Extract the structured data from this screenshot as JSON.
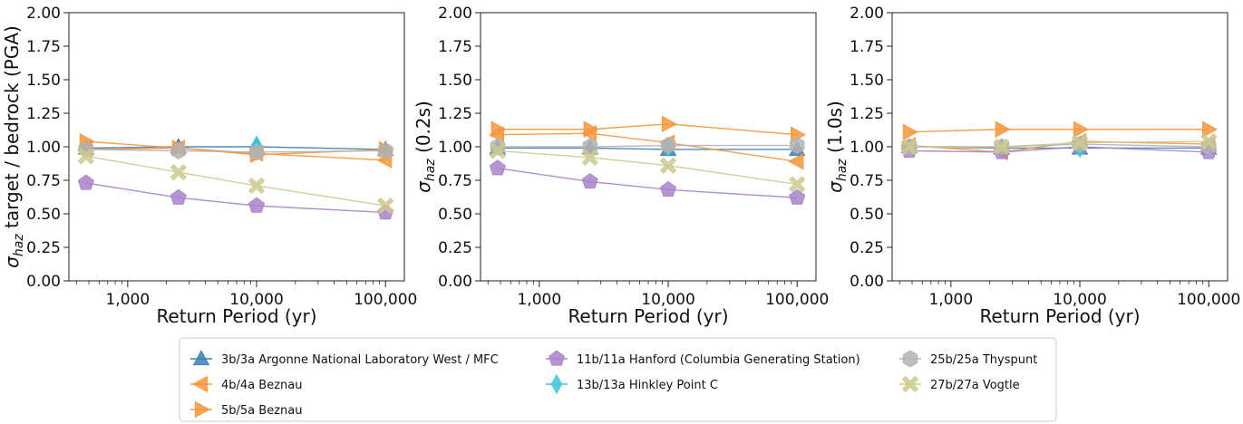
{
  "chart_data": [
    {
      "type": "line",
      "xlabel": "Return Period (yr)",
      "ylabel_parts": {
        "sigma": "σ",
        "sub": "haz",
        "rest": " target / bedrock (PGA)"
      },
      "xscale": "log",
      "xlim": [
        350,
        140000
      ],
      "ylim": [
        0,
        2.0
      ],
      "x": [
        475,
        2475,
        10000,
        100000
      ],
      "xticks": [
        {
          "value": 1000,
          "label": "1,000"
        },
        {
          "value": 10000,
          "label": "10,000"
        },
        {
          "value": 100000,
          "label": "100,000"
        }
      ],
      "yticks": [
        "0.00",
        "0.25",
        "0.50",
        "0.75",
        "1.00",
        "1.25",
        "1.50",
        "1.75",
        "2.00"
      ],
      "series": [
        {
          "key": "s3",
          "values": [
            0.99,
            1.0,
            1.0,
            0.98
          ]
        },
        {
          "key": "s4",
          "values": [
            0.98,
            0.99,
            0.95,
            0.9
          ]
        },
        {
          "key": "s5",
          "values": [
            1.04,
            0.99,
            0.94,
            0.98
          ]
        },
        {
          "key": "s11",
          "values": [
            0.73,
            0.62,
            0.56,
            0.51
          ]
        },
        {
          "key": "s13",
          "values": [
            null,
            null,
            1.01,
            null
          ]
        },
        {
          "key": "s25",
          "values": [
            0.98,
            0.97,
            0.96,
            0.97
          ]
        },
        {
          "key": "s27",
          "values": [
            0.93,
            0.81,
            0.71,
            0.56
          ]
        }
      ]
    },
    {
      "type": "line",
      "xlabel": "Return Period (yr)",
      "ylabel_parts": {
        "sigma": "σ",
        "sub": "haz",
        "rest": " (0.2s)"
      },
      "xscale": "log",
      "xlim": [
        350,
        140000
      ],
      "ylim": [
        0,
        2.0
      ],
      "x": [
        475,
        2475,
        10000,
        100000
      ],
      "xticks": [
        {
          "value": 1000,
          "label": "1,000"
        },
        {
          "value": 10000,
          "label": "10,000"
        },
        {
          "value": 100000,
          "label": "100,000"
        }
      ],
      "yticks": [
        "0.00",
        "0.25",
        "0.50",
        "0.75",
        "1.00",
        "1.25",
        "1.50",
        "1.75",
        "2.00"
      ],
      "series": [
        {
          "key": "s3",
          "values": [
            0.99,
            0.99,
            0.98,
            0.98
          ]
        },
        {
          "key": "s4",
          "values": [
            1.09,
            1.1,
            1.03,
            0.89
          ]
        },
        {
          "key": "s5",
          "values": [
            1.13,
            1.13,
            1.17,
            1.09
          ]
        },
        {
          "key": "s11",
          "values": [
            0.84,
            0.74,
            0.68,
            0.62
          ]
        },
        {
          "key": "s13",
          "values": [
            null,
            null,
            1.0,
            null
          ]
        },
        {
          "key": "s25",
          "values": [
            1.0,
            1.0,
            1.01,
            1.01
          ]
        },
        {
          "key": "s27",
          "values": [
            0.97,
            0.92,
            0.86,
            0.72
          ]
        }
      ]
    },
    {
      "type": "line",
      "xlabel": "Return Period (yr)",
      "ylabel_parts": {
        "sigma": "σ",
        "sub": "haz",
        "rest": " (1.0s)"
      },
      "xscale": "log",
      "xlim": [
        350,
        140000
      ],
      "ylim": [
        0,
        2.0
      ],
      "x": [
        475,
        2475,
        10000,
        100000
      ],
      "xticks": [
        {
          "value": 1000,
          "label": "1,000"
        },
        {
          "value": 10000,
          "label": "10,000"
        },
        {
          "value": 100000,
          "label": "100,000"
        }
      ],
      "yticks": [
        "0.00",
        "0.25",
        "0.50",
        "0.75",
        "1.00",
        "1.25",
        "1.50",
        "1.75",
        "2.00"
      ],
      "series": [
        {
          "key": "s3",
          "values": [
            1.0,
            0.99,
            0.99,
            0.99
          ]
        },
        {
          "key": "s4",
          "values": [
            1.01,
            0.96,
            1.04,
            1.02
          ]
        },
        {
          "key": "s5",
          "values": [
            1.11,
            1.13,
            1.13,
            1.13
          ]
        },
        {
          "key": "s11",
          "values": [
            0.97,
            0.96,
            1.0,
            0.96
          ]
        },
        {
          "key": "s13",
          "values": [
            null,
            null,
            0.99,
            null
          ]
        },
        {
          "key": "s25",
          "values": [
            1.0,
            1.0,
            1.02,
            1.0
          ]
        },
        {
          "key": "s27",
          "values": [
            1.0,
            1.0,
            1.03,
            1.04
          ]
        }
      ]
    }
  ],
  "legend": {
    "placement": "bottom-center",
    "entries": [
      {
        "key": "s3",
        "name": "3b/3a Argonne National Laboratory West / MFC",
        "color": "#3a7fb5",
        "marker": "triangle-up"
      },
      {
        "key": "s4",
        "name": "4b/4a Beznau",
        "color": "#f5953c",
        "marker": "triangle-left"
      },
      {
        "key": "s5",
        "name": "5b/5a Beznau",
        "color": "#f5953c",
        "marker": "triangle-right"
      },
      {
        "key": "s11",
        "name": "11b/11a Hanford (Columbia Generating Station)",
        "color": "#a982cb",
        "marker": "pentagon"
      },
      {
        "key": "s13",
        "name": "13b/13a Hinkley Point C",
        "color": "#3fc7d6",
        "marker": "diamond"
      },
      {
        "key": "s25",
        "name": "25b/25a Thyspunt",
        "color": "#b3b3b3",
        "marker": "hexagon"
      },
      {
        "key": "s27",
        "name": "27b/27a Vogtle",
        "color": "#cdca8f",
        "marker": "x-thick"
      }
    ]
  }
}
